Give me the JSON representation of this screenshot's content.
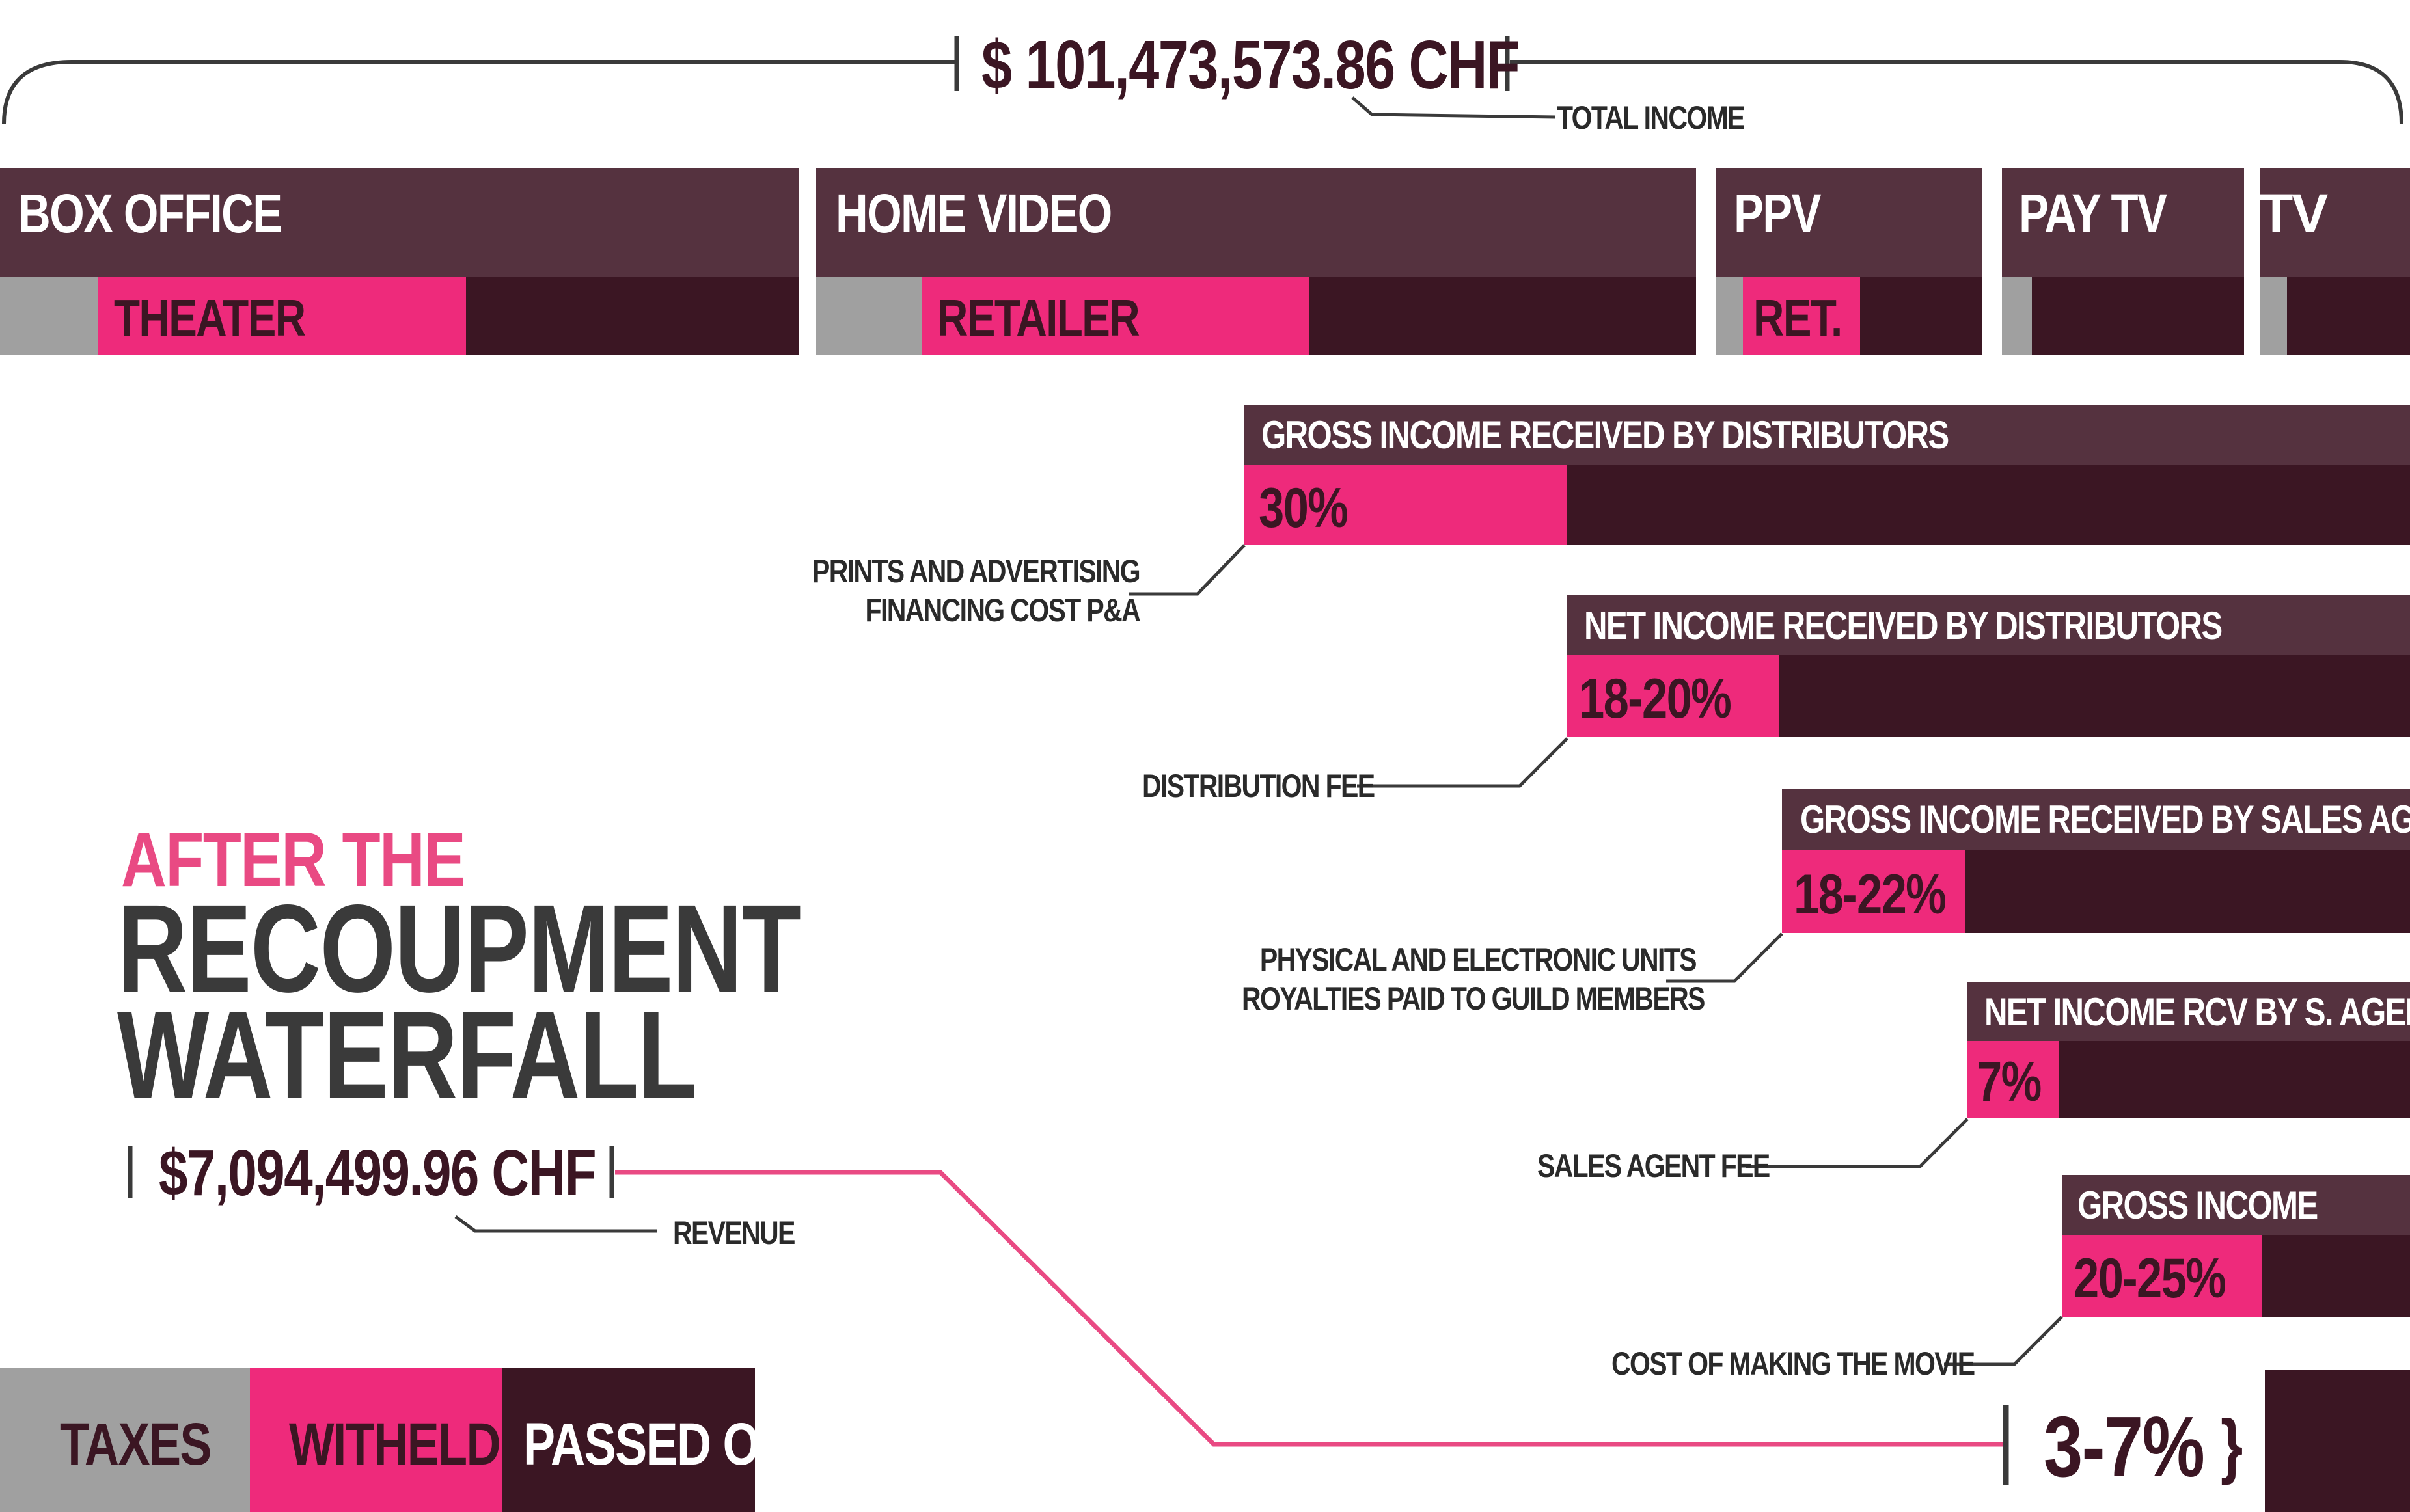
{
  "total": {
    "amount": "$ 101,473,573.86 CHF",
    "label": "TOTAL INCOME"
  },
  "channels": [
    {
      "title": "BOX OFFICE",
      "sub": "THEATER"
    },
    {
      "title": "HOME VIDEO",
      "sub": "RETAILER"
    },
    {
      "title": "PPV",
      "sub": "RET."
    },
    {
      "title": "PAY TV",
      "sub": ""
    },
    {
      "title": "TV",
      "sub": ""
    }
  ],
  "waterfall": [
    {
      "title": "GROSS INCOME RECEIVED BY DISTRIBUTORS",
      "pct": "30%",
      "deduction": [
        "PRINTS AND ADVERTISING",
        "FINANCING COST P&A"
      ]
    },
    {
      "title": "NET INCOME RECEIVED BY DISTRIBUTORS",
      "pct": "18-20%",
      "deduction": [
        "DISTRIBUTION FEE"
      ]
    },
    {
      "title": "GROSS INCOME RECEIVED BY SALES AGENT",
      "pct": "18-22%",
      "deduction": [
        "PHYSICAL AND ELECTRONIC UNITS",
        "ROYALTIES PAID TO GUILD MEMBERS"
      ]
    },
    {
      "title": "NET INCOME RCV BY S. AGENT",
      "pct": "7%",
      "deduction": [
        "SALES AGENT FEE"
      ]
    },
    {
      "title": "GROSS INCOME",
      "pct": "20-25%",
      "deduction": [
        "COST OF MAKING THE MOVIE"
      ]
    }
  ],
  "headline": {
    "line1": "AFTER THE",
    "line2": "RECOUPMENT",
    "line3": "WATERFALL"
  },
  "revenue": {
    "amount": "$7,094,499.96 CHF",
    "label": "REVENUE"
  },
  "final_share": "3-7%",
  "legend": {
    "taxes": "TAXES",
    "witheld": "WITHELD",
    "passed_on": "PASSED ON"
  },
  "colors": {
    "dark": "#55323f",
    "darker": "#3b1623",
    "pink": "#ee2a7b",
    "grey": "#a0a0a0",
    "text": "#3a3a3a"
  }
}
